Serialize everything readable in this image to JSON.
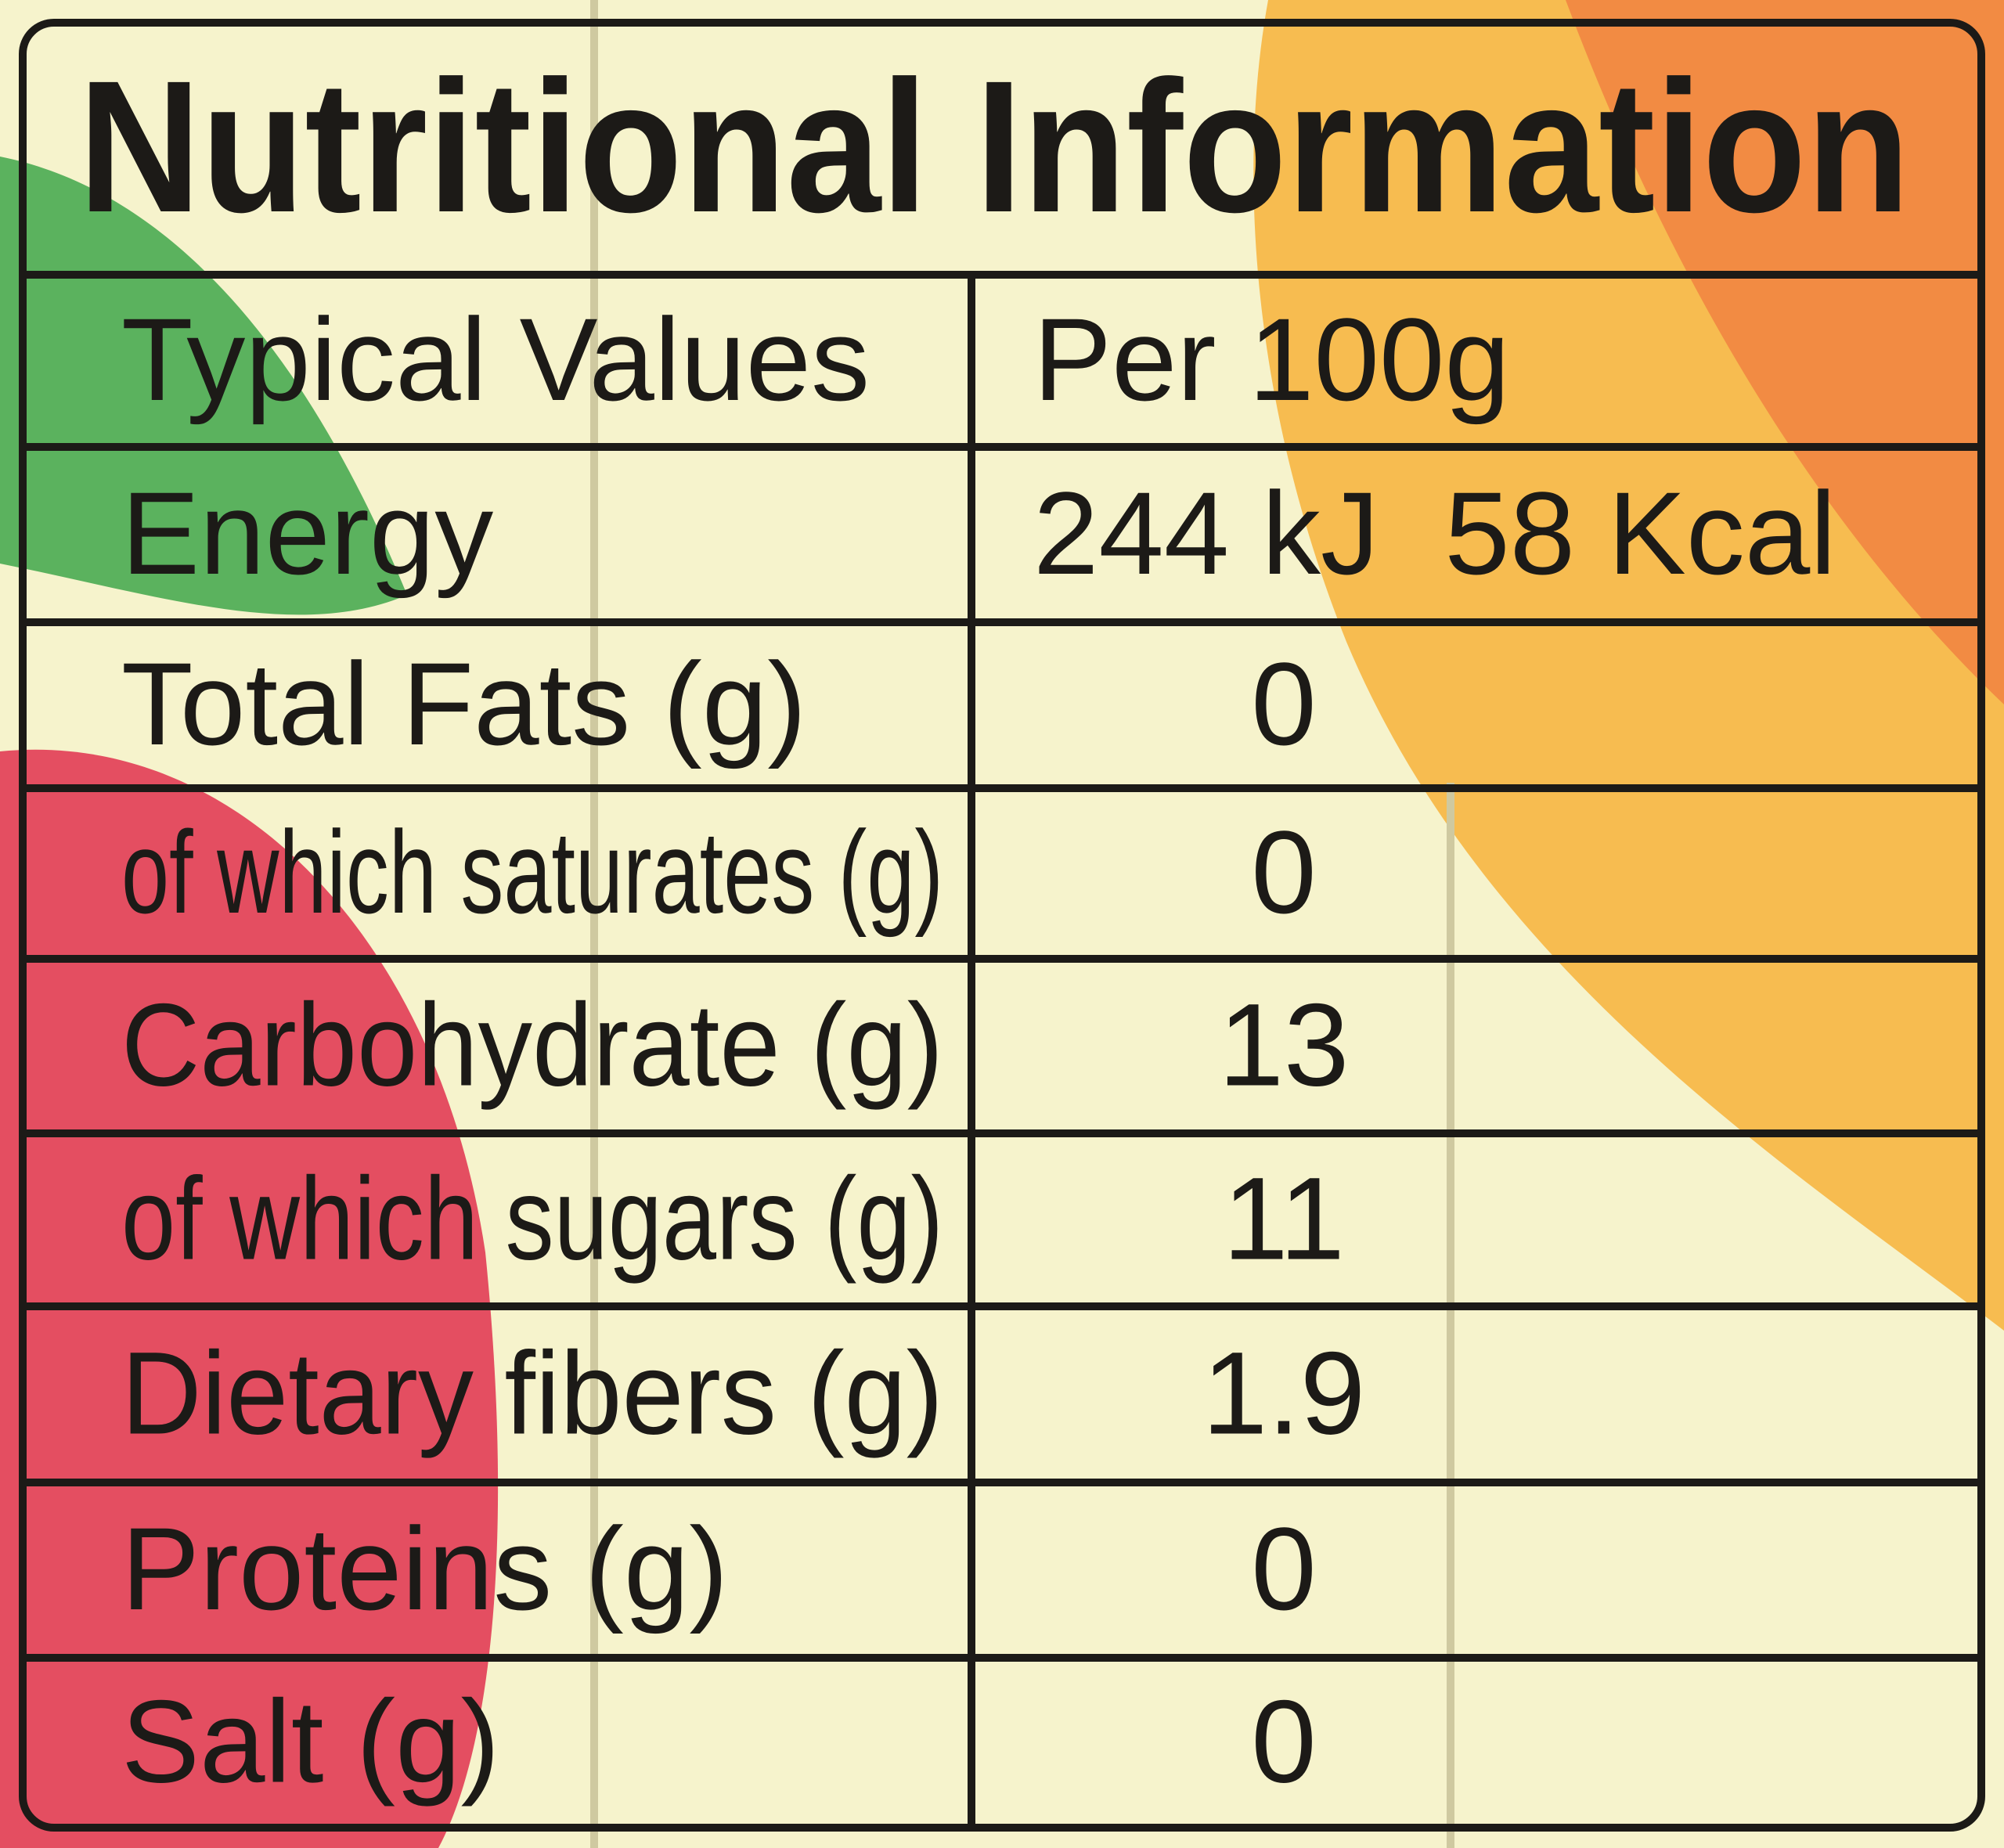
{
  "header": {
    "title": "Nutritional Information"
  },
  "table": {
    "columns": [
      "Typical Values",
      "Per 100g"
    ],
    "rows": [
      [
        "Energy",
        "244 kJ  58 Kcal"
      ],
      [
        "Total Fats (g)",
        "0"
      ],
      [
        "of which saturates (g)",
        "0"
      ],
      [
        "Carbohydrate (g)",
        "13"
      ],
      [
        "of which sugars (g)",
        "11"
      ],
      [
        "Dietary fibers (g)",
        "1.9"
      ],
      [
        "Proteins (g)",
        "0"
      ],
      [
        "Salt (g)",
        "0"
      ]
    ]
  }
}
